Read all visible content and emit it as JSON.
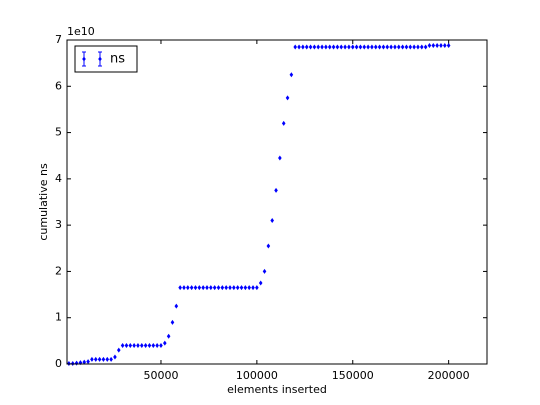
{
  "chart_data": {
    "type": "scatter",
    "y_offset_label": "1e10",
    "xlabel": "elements inserted",
    "ylabel": "cumulative ns",
    "xlim": [
      1000,
      220000
    ],
    "ylim": [
      0,
      7
    ],
    "xticks": [
      50000,
      100000,
      150000,
      200000
    ],
    "yticks": [
      0,
      1,
      2,
      3,
      4,
      5,
      6,
      7
    ],
    "legend": "upper left",
    "series": [
      {
        "name": "ns",
        "color": "#0000ff",
        "x": [
          2000,
          4000,
          6000,
          8000,
          10000,
          12000,
          14000,
          16000,
          18000,
          20000,
          22000,
          24000,
          26000,
          28000,
          30000,
          32000,
          34000,
          36000,
          38000,
          40000,
          42000,
          44000,
          46000,
          48000,
          50000,
          52000,
          54000,
          56000,
          58000,
          60000,
          62000,
          64000,
          66000,
          68000,
          70000,
          72000,
          74000,
          76000,
          78000,
          80000,
          82000,
          84000,
          86000,
          88000,
          90000,
          92000,
          94000,
          96000,
          98000,
          100000,
          102000,
          104000,
          106000,
          108000,
          110000,
          112000,
          114000,
          116000,
          118000,
          120000,
          122000,
          124000,
          126000,
          128000,
          130000,
          132000,
          134000,
          136000,
          138000,
          140000,
          142000,
          144000,
          146000,
          148000,
          150000,
          152000,
          154000,
          156000,
          158000,
          160000,
          162000,
          164000,
          166000,
          168000,
          170000,
          172000,
          174000,
          176000,
          178000,
          180000,
          182000,
          184000,
          186000,
          188000,
          190000,
          192000,
          194000,
          196000,
          198000,
          200000
        ],
        "values": [
          0.01,
          0.01,
          0.02,
          0.03,
          0.04,
          0.05,
          0.1,
          0.1,
          0.1,
          0.1,
          0.1,
          0.1,
          0.15,
          0.3,
          0.4,
          0.4,
          0.4,
          0.4,
          0.4,
          0.4,
          0.4,
          0.4,
          0.4,
          0.4,
          0.4,
          0.45,
          0.6,
          0.9,
          1.25,
          1.65,
          1.65,
          1.65,
          1.65,
          1.65,
          1.65,
          1.65,
          1.65,
          1.65,
          1.65,
          1.65,
          1.65,
          1.65,
          1.65,
          1.65,
          1.65,
          1.65,
          1.65,
          1.65,
          1.65,
          1.65,
          1.75,
          2.0,
          2.55,
          3.1,
          3.75,
          4.45,
          5.2,
          5.75,
          6.25,
          6.85,
          6.85,
          6.85,
          6.85,
          6.85,
          6.85,
          6.85,
          6.85,
          6.85,
          6.85,
          6.85,
          6.85,
          6.85,
          6.85,
          6.85,
          6.85,
          6.85,
          6.85,
          6.85,
          6.85,
          6.85,
          6.85,
          6.85,
          6.85,
          6.85,
          6.85,
          6.85,
          6.85,
          6.85,
          6.85,
          6.85,
          6.85,
          6.85,
          6.85,
          6.85,
          6.88,
          6.88,
          6.88,
          6.88,
          6.88,
          6.88
        ]
      }
    ]
  }
}
